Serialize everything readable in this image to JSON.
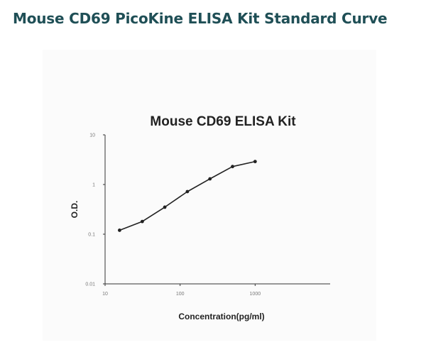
{
  "page": {
    "title": "Mouse CD69 PicoKine ELISA Kit Standard Curve"
  },
  "colors": {
    "title": "#1f4f56",
    "series": "#222222",
    "axis": "#333333",
    "figure_bg": "#fbfbfb"
  },
  "chart_data": {
    "type": "line",
    "title": "Mouse CD69 ELISA Kit",
    "xlabel": "Concentration(pg/ml)",
    "ylabel": "O.D.",
    "xscale": "log",
    "yscale": "log",
    "xlim": [
      10,
      10000
    ],
    "ylim": [
      0.01,
      10
    ],
    "x_ticks": [
      {
        "value": 10,
        "label": "10"
      },
      {
        "value": 100,
        "label": "100"
      },
      {
        "value": 1000,
        "label": "1000"
      }
    ],
    "y_ticks": [
      {
        "value": 0.01,
        "label": "0.01"
      },
      {
        "value": 0.1,
        "label": "0.1"
      },
      {
        "value": 1,
        "label": "1"
      },
      {
        "value": 10,
        "label": "10"
      }
    ],
    "grid": false,
    "legend": "none",
    "series": [
      {
        "x": [
          15.6,
          31.3,
          62.5,
          125,
          250,
          500,
          1000
        ],
        "y": [
          0.12,
          0.18,
          0.35,
          0.72,
          1.3,
          2.3,
          2.9
        ]
      }
    ]
  }
}
